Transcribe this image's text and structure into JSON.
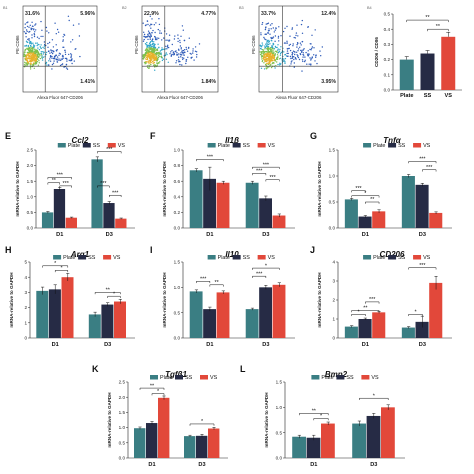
{
  "colors": {
    "Plate": "#3a7e83",
    "SS": "#262b45",
    "VS": "#e2483a"
  },
  "legend": [
    "Plate",
    "SS",
    "VS"
  ],
  "chart_data": [
    {
      "type": "scatter",
      "xlabel": "Alexa Fluor 647-CD206",
      "ylabel": "PE-CD86",
      "quadrants": [
        "31.6%",
        "5.96%",
        "1.41%"
      ]
    },
    {
      "type": "scatter",
      "xlabel": "Alexa Fluor 647-CD206",
      "ylabel": "PE-CD86",
      "quadrants": [
        "22.9%",
        "4.77%",
        "1.84%"
      ]
    },
    {
      "type": "scatter",
      "xlabel": "Alexa Fluor 647-CD206",
      "ylabel": "PE-CD86",
      "quadrants": [
        "33.7%",
        "12.4%",
        "3.95%"
      ]
    },
    {
      "type": "bar",
      "ylabel": "CD206 / CD86",
      "categories": [
        "Plate",
        "SS",
        "VS"
      ],
      "values": [
        0.2,
        0.24,
        0.35
      ],
      "errors": [
        0.02,
        0.02,
        0.03
      ],
      "ylim": [
        0,
        0.5
      ],
      "yticks": [
        "0.0",
        "0.1",
        "0.2",
        "0.3",
        "0.4",
        "0.5"
      ],
      "sig": [
        "**",
        "**"
      ]
    },
    {
      "type": "bar",
      "label": "E",
      "title": "Ccl2",
      "ylabel": "mRNA-relative to GAPDH",
      "categories": [
        "D1",
        "D3"
      ],
      "ylim": [
        0,
        2.5
      ],
      "yticks": [
        "0.0",
        "0.5",
        "1.0",
        "1.5",
        "2.0",
        "2.5"
      ],
      "series": [
        {
          "name": "Plate",
          "values": [
            0.5,
            2.2
          ],
          "errors": [
            0.03,
            0.08
          ]
        },
        {
          "name": "SS",
          "values": [
            1.25,
            0.8
          ],
          "errors": [
            0.05,
            0.05
          ]
        },
        {
          "name": "VS",
          "values": [
            0.33,
            0.3
          ],
          "errors": [
            0.02,
            0.02
          ]
        }
      ],
      "sig": [
        "**",
        "***",
        "***",
        "***",
        "***",
        "***"
      ]
    },
    {
      "type": "bar",
      "label": "F",
      "title": "Il1β",
      "ylabel": "mRNA-relative to GAPDH",
      "categories": [
        "D1",
        "D3"
      ],
      "ylim": [
        0,
        1.0
      ],
      "yticks": [
        "0.0",
        "0.2",
        "0.4",
        "0.6",
        "0.8",
        "1.0"
      ],
      "series": [
        {
          "name": "Plate",
          "values": [
            0.74,
            0.58
          ],
          "errors": [
            0.02,
            0.02
          ]
        },
        {
          "name": "SS",
          "values": [
            0.63,
            0.38
          ],
          "errors": [
            0.15,
            0.03
          ]
        },
        {
          "name": "VS",
          "values": [
            0.58,
            0.16
          ],
          "errors": [
            0.02,
            0.02
          ]
        }
      ],
      "sig": [
        "***",
        "***",
        "***",
        "***"
      ]
    },
    {
      "type": "bar",
      "label": "G",
      "title": "Tnfα",
      "ylabel": "mRNA-relative to GAPDH",
      "categories": [
        "D1",
        "D3"
      ],
      "ylim": [
        0,
        1.5
      ],
      "yticks": [
        "0.0",
        "0.5",
        "1.0",
        "1.5"
      ],
      "series": [
        {
          "name": "Plate",
          "values": [
            0.55,
            1.0
          ],
          "errors": [
            0.02,
            0.03
          ]
        },
        {
          "name": "SS",
          "values": [
            0.22,
            0.83
          ],
          "errors": [
            0.02,
            0.03
          ]
        },
        {
          "name": "VS",
          "values": [
            0.32,
            0.29
          ],
          "errors": [
            0.03,
            0.02
          ]
        }
      ],
      "sig": [
        "***",
        "*",
        "**",
        "***",
        "***"
      ]
    },
    {
      "type": "bar",
      "label": "H",
      "title": "Arg1",
      "ylabel": "mRNA-relative to GAPDH",
      "categories": [
        "D1",
        "D3"
      ],
      "ylim": [
        0,
        5
      ],
      "yticks": [
        "0",
        "1",
        "2",
        "3",
        "4",
        "5"
      ],
      "series": [
        {
          "name": "Plate",
          "values": [
            3.1,
            1.55
          ],
          "errors": [
            0.25,
            0.15
          ]
        },
        {
          "name": "SS",
          "values": [
            3.2,
            2.2
          ],
          "errors": [
            0.3,
            0.12
          ]
        },
        {
          "name": "VS",
          "values": [
            4.0,
            2.4
          ],
          "errors": [
            0.25,
            0.15
          ]
        }
      ],
      "sig": [
        "*",
        "*",
        "**",
        "*"
      ]
    },
    {
      "type": "bar",
      "label": "I",
      "title": "Il10",
      "ylabel": "mRNA-relative to GAPDH",
      "categories": [
        "D1",
        "D3"
      ],
      "ylim": [
        0,
        1.5
      ],
      "yticks": [
        "0.0",
        "0.5",
        "1.0",
        "1.5"
      ],
      "series": [
        {
          "name": "Plate",
          "values": [
            0.92,
            0.57
          ],
          "errors": [
            0.03,
            0.02
          ]
        },
        {
          "name": "SS",
          "values": [
            0.57,
            1.0
          ],
          "errors": [
            0.04,
            0.04
          ]
        },
        {
          "name": "VS",
          "values": [
            0.9,
            1.05
          ],
          "errors": [
            0.03,
            0.04
          ]
        }
      ],
      "sig": [
        "***",
        "**",
        "***",
        "*"
      ]
    },
    {
      "type": "bar",
      "label": "J",
      "title": "CD206",
      "ylabel": "mRNA-relative to GAPDH",
      "categories": [
        "D1",
        "D3"
      ],
      "ylim": [
        0,
        4
      ],
      "yticks": [
        "0",
        "1",
        "2",
        "3",
        "4"
      ],
      "series": [
        {
          "name": "Plate",
          "values": [
            0.6,
            0.55
          ],
          "errors": [
            0.05,
            0.05
          ]
        },
        {
          "name": "SS",
          "values": [
            1.0,
            0.85
          ],
          "errors": [
            0.05,
            0.3
          ]
        },
        {
          "name": "VS",
          "values": [
            1.35,
            2.9
          ],
          "errors": [
            0.05,
            0.35
          ]
        }
      ],
      "sig": [
        "*",
        "**",
        "***",
        "*",
        "***"
      ]
    },
    {
      "type": "bar",
      "label": "K",
      "title": "Tgfβ1",
      "ylabel": "mRNA-relative to GAPDH",
      "categories": [
        "D1",
        "D3"
      ],
      "ylim": [
        0,
        2.5
      ],
      "yticks": [
        "0.0",
        "0.5",
        "1.0",
        "1.5",
        "2.0",
        "2.5"
      ],
      "series": [
        {
          "name": "Plate",
          "values": [
            0.98,
            0.72
          ],
          "errors": [
            0.04,
            0.03
          ]
        },
        {
          "name": "SS",
          "values": [
            1.15,
            0.73
          ],
          "errors": [
            0.05,
            0.05
          ]
        },
        {
          "name": "VS",
          "values": [
            1.98,
            0.97
          ],
          "errors": [
            0.06,
            0.04
          ]
        }
      ],
      "sig": [
        "**",
        "*",
        "*"
      ]
    },
    {
      "type": "bar",
      "label": "L",
      "title": "Bmp2",
      "ylabel": "mRNA-relative to GAPDH",
      "categories": [
        "D1",
        "D3"
      ],
      "ylim": [
        0,
        1.5
      ],
      "yticks": [
        "0.0",
        "0.5",
        "1.0",
        "1.5"
      ],
      "series": [
        {
          "name": "Plate",
          "values": [
            0.42,
            0.68
          ],
          "errors": [
            0.03,
            0.05
          ]
        },
        {
          "name": "SS",
          "values": [
            0.4,
            0.83
          ],
          "errors": [
            0.05,
            0.05
          ]
        },
        {
          "name": "VS",
          "values": [
            0.68,
            1.0
          ],
          "errors": [
            0.03,
            0.05
          ]
        }
      ],
      "sig": [
        "**",
        "*",
        "*"
      ]
    }
  ]
}
